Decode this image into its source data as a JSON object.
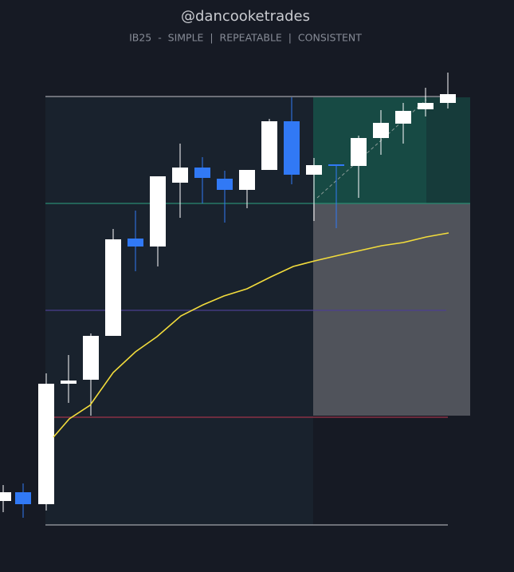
{
  "header": {
    "title": "@dancooketrades",
    "subtitle": "IB25  -  SIMPLE  |  REPEATABLE  |  CONSISTENT"
  }
}
